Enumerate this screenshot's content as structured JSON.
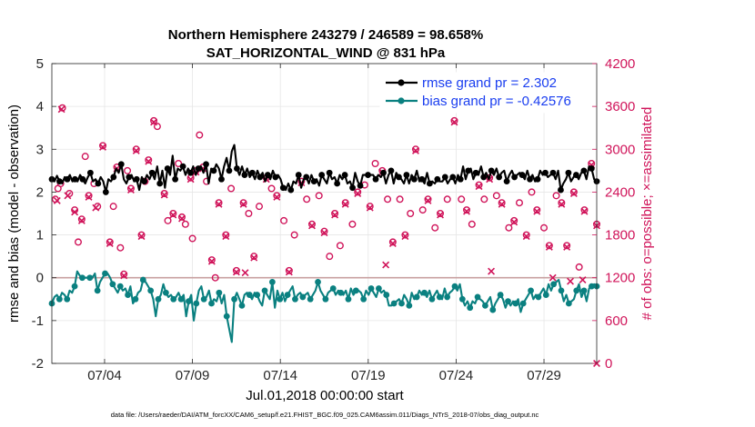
{
  "chart_data": {
    "type": "line",
    "title_line1": "Northern Hemisphere 243279 / 246589 = 98.658%",
    "title_line2": "SAT_HORIZONTAL_WIND @ 831 hPa",
    "ylabel_left": "rmse and bias (model - observation)",
    "ylabel_right": "# of obs: o=possible; ×=assimilated",
    "xlabel": "Jul.01,2018 00:00:00 start",
    "footer": "data file: /Users/raeder/DAI/ATM_forcXX/CAM6_setup/f.e21.FHIST_BGC.f09_025.CAM6assim.011/Diags_NTrS_2018-07/obs_diag_output.nc",
    "xlim": [
      1,
      32
    ],
    "ylim_left": [
      -2,
      5
    ],
    "ylim_right": [
      0,
      4200
    ],
    "x_ticks": [
      4,
      9,
      14,
      19,
      24,
      29
    ],
    "x_tick_labels": [
      "07/04",
      "07/09",
      "07/14",
      "07/19",
      "07/24",
      "07/29"
    ],
    "y_ticks_left": [
      "-2",
      "-1",
      "0",
      "1",
      "2",
      "3",
      "4",
      "5"
    ],
    "y_ticks_right": [
      "0",
      "600",
      "1200",
      "1800",
      "2400",
      "3000",
      "3600",
      "4200"
    ],
    "grid": true,
    "legend_position": "top-right",
    "colors": {
      "rmse": "#000000",
      "bias": "#0a8080",
      "obs": "#d0145a",
      "zero_line": "#c8a0a0",
      "legend_text": "#1a3ef0"
    },
    "series": [
      {
        "name": "rmse grand pr = 2.302",
        "values": [
          2.3,
          2.25,
          2.38,
          2.25,
          2.2,
          2.35,
          2.3,
          2.4,
          2.25,
          2.3,
          2.25,
          2.4,
          2.3,
          2.2,
          2.35,
          2.45,
          2.25,
          2.3,
          2.2,
          2.35,
          2.25,
          2.0,
          2.3,
          2.25,
          2.35,
          2.55,
          2.45,
          2.65,
          2.3,
          2.2,
          2.35,
          2.4,
          2.25,
          2.3,
          2.05,
          2.35,
          2.25,
          2.4,
          2.3,
          2.45,
          2.3,
          2.6,
          2.2,
          2.5,
          2.1,
          2.55,
          2.4,
          2.85,
          2.3,
          2.55,
          2.5,
          2.6,
          2.4,
          2.55,
          2.45,
          2.6,
          2.4,
          2.55,
          2.6,
          2.45,
          2.65,
          2.2,
          2.55,
          2.5,
          2.65,
          2.55,
          2.3,
          2.6,
          2.8,
          2.5,
          2.95,
          3.1,
          2.55,
          2.4,
          2.6,
          2.4,
          2.55,
          2.35,
          2.45,
          2.3,
          2.5,
          2.35,
          2.45,
          2.25,
          2.4,
          2.3,
          2.5,
          2.35,
          2.4,
          2.3,
          2.1,
          2.05,
          2.2,
          2.05,
          2.25,
          2.2,
          2.4,
          2.1,
          2.3,
          2.35,
          2.2,
          2.4,
          2.25,
          2.3,
          2.15,
          2.4,
          2.3,
          2.2,
          2.45,
          2.3,
          2.35,
          2.2,
          2.4,
          2.3,
          2.4,
          2.2,
          2.25,
          2.1,
          2.45,
          2.25,
          2.15,
          2.4,
          2.4,
          2.4,
          2.4,
          2.4,
          2.3,
          2.4,
          2.35,
          2.45,
          2.2,
          2.4,
          2.5,
          2.2,
          2.45,
          2.35,
          2.3,
          2.2,
          2.4,
          2.2,
          2.4,
          2.3,
          2.5,
          2.25,
          2.3,
          2.2,
          2.45,
          2.2,
          2.25,
          2.2,
          2.3,
          2.25,
          2.25,
          2.35,
          2.2,
          2.3,
          2.35,
          2.2,
          2.4,
          2.3,
          2.6,
          2.3,
          2.5,
          2.55,
          2.3,
          2.45,
          2.4,
          2.6,
          2.35,
          2.45,
          2.3,
          2.5,
          2.4,
          2.55,
          2.35,
          2.45,
          2.5,
          2.25,
          2.4,
          2.5,
          2.35,
          2.4,
          2.45,
          2.4,
          2.3,
          2.5,
          2.3,
          2.4,
          2.25,
          2.3,
          2.5,
          2.4,
          2.45,
          2.35,
          2.4,
          2.45,
          2.3,
          2.5,
          2.05,
          2.2,
          2.3,
          2.45,
          2.25,
          2.35,
          2.4,
          2.3,
          2.45,
          2.5,
          2.3,
          2.6,
          2.55,
          2.3,
          2.25
        ]
      },
      {
        "name": "bias grand pr = -0.42576",
        "values": [
          -0.6,
          -0.45,
          -0.4,
          -0.5,
          -0.35,
          -0.4,
          -0.5,
          -0.3,
          -0.35,
          -0.2,
          0.15,
          0.05,
          0.0,
          0.0,
          0.0,
          0.0,
          0.0,
          0.1,
          -0.3,
          -0.1,
          0.0,
          0.1,
          0.1,
          0.0,
          -0.15,
          -0.25,
          -0.35,
          -0.2,
          -0.3,
          -0.25,
          -0.4,
          -0.2,
          -0.6,
          -0.5,
          -0.35,
          -0.3,
          -0.05,
          -0.1,
          -0.2,
          -0.3,
          -0.5,
          -0.9,
          -0.5,
          -0.4,
          -0.15,
          -0.35,
          -0.45,
          -0.4,
          -0.5,
          -0.45,
          -0.35,
          -0.5,
          -0.4,
          -0.9,
          -0.55,
          -0.4,
          -1.0,
          -0.6,
          -0.3,
          -0.2,
          -0.5,
          -0.45,
          -0.3,
          -0.6,
          -0.5,
          -0.55,
          -0.35,
          -0.6,
          -0.4,
          -0.9,
          -1.2,
          -1.5,
          -0.5,
          -0.35,
          -0.5,
          -0.65,
          -0.4,
          -0.35,
          -0.4,
          -0.5,
          -0.35,
          -0.4,
          -0.55,
          -0.65,
          -0.3,
          -0.4,
          -0.5,
          -0.1,
          -0.7,
          -0.3,
          -0.5,
          -0.35,
          -0.55,
          -0.4,
          -0.3,
          -0.2,
          -0.5,
          -0.4,
          -0.35,
          -0.45,
          -0.4,
          -0.35,
          -0.5,
          -0.4,
          -0.3,
          -0.1,
          -0.3,
          -0.4,
          -0.5,
          -0.35,
          -0.3,
          -0.25,
          -0.4,
          -0.3,
          -0.35,
          -0.4,
          -0.3,
          -0.5,
          -0.25,
          -0.4,
          -0.3,
          -0.3,
          -0.35,
          -0.5,
          -0.3,
          -0.4,
          -0.25,
          -0.35,
          -0.45,
          -0.25,
          -0.35,
          -0.3,
          -0.4,
          -0.65,
          -0.65,
          -0.6,
          -0.55,
          -0.5,
          -0.6,
          -0.4,
          -0.5,
          -0.65,
          -0.35,
          -0.5,
          -0.45,
          -0.3,
          -0.4,
          -0.35,
          -0.45,
          -0.3,
          -0.5,
          -0.4,
          -0.3,
          -0.45,
          -0.5,
          -0.25,
          -0.45,
          -0.35,
          -0.3,
          -0.2,
          -0.3,
          -0.15,
          -0.5,
          -0.65,
          -0.55,
          -0.7,
          -0.55,
          -0.6,
          -0.45,
          -0.5,
          -0.55,
          -0.65,
          -0.55,
          -0.45,
          -0.75,
          -0.6,
          -0.5,
          -0.4,
          -0.5,
          -0.7,
          -0.55,
          -0.65,
          -0.55,
          -0.6,
          -0.5,
          -0.8,
          -0.6,
          -0.5,
          -0.4,
          -0.3,
          -0.5,
          -0.4,
          -0.45,
          -0.35,
          -0.25,
          -0.4,
          -0.15,
          -0.3,
          -0.15,
          -0.1,
          -0.05,
          -0.3,
          -0.55,
          -0.4,
          -0.6,
          -0.55,
          -0.5,
          -0.3,
          -0.15,
          -0.45,
          -0.3,
          -0.55,
          -0.25,
          -0.2,
          -0.15,
          -0.2
        ]
      }
    ],
    "obs_possible": [
      [
        1.2,
        2300
      ],
      [
        1.35,
        2450
      ],
      [
        1.5,
        2520
      ],
      [
        1.6,
        3580
      ],
      [
        2.0,
        2380
      ],
      [
        2.3,
        2150
      ],
      [
        2.5,
        1700
      ],
      [
        2.7,
        2020
      ],
      [
        2.9,
        2900
      ],
      [
        3.1,
        2350
      ],
      [
        3.4,
        2520
      ],
      [
        3.6,
        2200
      ],
      [
        3.9,
        3050
      ],
      [
        4.3,
        1700
      ],
      [
        4.5,
        2200
      ],
      [
        4.7,
        2750
      ],
      [
        4.9,
        1620
      ],
      [
        5.1,
        1250
      ],
      [
        5.3,
        2700
      ],
      [
        5.5,
        2450
      ],
      [
        5.8,
        3000
      ],
      [
        6.1,
        1800
      ],
      [
        6.3,
        2550
      ],
      [
        6.5,
        2850
      ],
      [
        6.8,
        3400
      ],
      [
        7.0,
        3320
      ],
      [
        7.4,
        2380
      ],
      [
        7.6,
        2000
      ],
      [
        7.9,
        2100
      ],
      [
        8.2,
        2800
      ],
      [
        8.4,
        2050
      ],
      [
        8.6,
        1950
      ],
      [
        8.9,
        2600
      ],
      [
        9.0,
        1750
      ],
      [
        9.2,
        2700
      ],
      [
        9.4,
        3200
      ],
      [
        9.6,
        2750
      ],
      [
        9.8,
        2550
      ],
      [
        10.1,
        1450
      ],
      [
        10.3,
        1200
      ],
      [
        10.5,
        2250
      ],
      [
        10.9,
        1800
      ],
      [
        11.2,
        2450
      ],
      [
        11.5,
        1300
      ],
      [
        11.9,
        2250
      ],
      [
        12.2,
        2100
      ],
      [
        12.5,
        1500
      ],
      [
        12.8,
        2200
      ],
      [
        13.2,
        2600
      ],
      [
        13.5,
        2450
      ],
      [
        13.8,
        2350
      ],
      [
        14.2,
        2000
      ],
      [
        14.5,
        1300
      ],
      [
        14.8,
        1800
      ],
      [
        15.2,
        2550
      ],
      [
        15.5,
        2300
      ],
      [
        15.8,
        1950
      ],
      [
        16.2,
        2350
      ],
      [
        16.5,
        1850
      ],
      [
        16.8,
        1500
      ],
      [
        17.1,
        2100
      ],
      [
        17.4,
        1650
      ],
      [
        17.7,
        2250
      ],
      [
        18.1,
        1950
      ],
      [
        18.4,
        2400
      ],
      [
        18.8,
        2500
      ],
      [
        19.1,
        2200
      ],
      [
        19.4,
        2800
      ],
      [
        19.8,
        2700
      ],
      [
        20.1,
        2300
      ],
      [
        20.4,
        1700
      ],
      [
        20.8,
        2300
      ],
      [
        21.1,
        1800
      ],
      [
        21.4,
        2100
      ],
      [
        21.7,
        3000
      ],
      [
        22.1,
        2150
      ],
      [
        22.4,
        2300
      ],
      [
        22.8,
        1900
      ],
      [
        23.1,
        2100
      ],
      [
        23.5,
        2300
      ],
      [
        23.9,
        3400
      ],
      [
        24.3,
        2300
      ],
      [
        24.6,
        2150
      ],
      [
        24.9,
        1950
      ],
      [
        25.3,
        2500
      ],
      [
        25.6,
        2300
      ],
      [
        25.9,
        2600
      ],
      [
        26.3,
        2350
      ],
      [
        26.6,
        2250
      ],
      [
        27.0,
        1900
      ],
      [
        27.3,
        2000
      ],
      [
        27.6,
        2250
      ],
      [
        28.0,
        1800
      ],
      [
        28.3,
        2400
      ],
      [
        28.6,
        2150
      ],
      [
        29.0,
        1900
      ],
      [
        29.3,
        1650
      ],
      [
        29.7,
        2350
      ],
      [
        30.0,
        2250
      ],
      [
        30.3,
        1650
      ],
      [
        30.7,
        2400
      ],
      [
        31.0,
        1350
      ],
      [
        31.3,
        2150
      ],
      [
        31.7,
        2800
      ],
      [
        32.0,
        1950
      ]
    ],
    "obs_assimilated": [
      [
        1.3,
        2280
      ],
      [
        1.55,
        3560
      ],
      [
        1.9,
        2350
      ],
      [
        2.3,
        2120
      ],
      [
        2.7,
        2000
      ],
      [
        3.1,
        2330
      ],
      [
        3.5,
        2180
      ],
      [
        3.9,
        3030
      ],
      [
        4.3,
        1680
      ],
      [
        4.7,
        2730
      ],
      [
        5.1,
        1230
      ],
      [
        5.5,
        2430
      ],
      [
        5.8,
        2980
      ],
      [
        6.1,
        1780
      ],
      [
        6.5,
        2830
      ],
      [
        6.8,
        3380
      ],
      [
        7.4,
        2360
      ],
      [
        7.9,
        2080
      ],
      [
        8.4,
        2030
      ],
      [
        8.9,
        2580
      ],
      [
        9.2,
        2680
      ],
      [
        9.6,
        2730
      ],
      [
        10.1,
        1430
      ],
      [
        10.5,
        2230
      ],
      [
        10.9,
        1780
      ],
      [
        11.5,
        1280
      ],
      [
        11.9,
        2230
      ],
      [
        12.5,
        1480
      ],
      [
        13.2,
        2580
      ],
      [
        13.8,
        2330
      ],
      [
        14.5,
        1280
      ],
      [
        15.2,
        2530
      ],
      [
        15.8,
        1930
      ],
      [
        16.5,
        1830
      ],
      [
        17.1,
        2080
      ],
      [
        17.7,
        2230
      ],
      [
        18.4,
        2380
      ],
      [
        19.1,
        2180
      ],
      [
        19.8,
        2680
      ],
      [
        20.4,
        1680
      ],
      [
        21.1,
        1780
      ],
      [
        21.7,
        2980
      ],
      [
        22.4,
        2280
      ],
      [
        23.1,
        2080
      ],
      [
        23.9,
        3380
      ],
      [
        24.6,
        2130
      ],
      [
        25.3,
        2480
      ],
      [
        25.9,
        2580
      ],
      [
        26.6,
        2230
      ],
      [
        27.3,
        1980
      ],
      [
        28.0,
        1780
      ],
      [
        28.6,
        2130
      ],
      [
        29.3,
        1630
      ],
      [
        30.0,
        2230
      ],
      [
        30.3,
        1630
      ],
      [
        30.7,
        2380
      ],
      [
        31.3,
        2130
      ],
      [
        31.7,
        2780
      ],
      [
        32.0,
        1930
      ],
      [
        12.0,
        1270
      ],
      [
        20.0,
        1380
      ],
      [
        26.0,
        1290
      ],
      [
        29.5,
        1200
      ],
      [
        30.5,
        1150
      ],
      [
        31.2,
        1170
      ],
      [
        32.0,
        0
      ]
    ]
  }
}
